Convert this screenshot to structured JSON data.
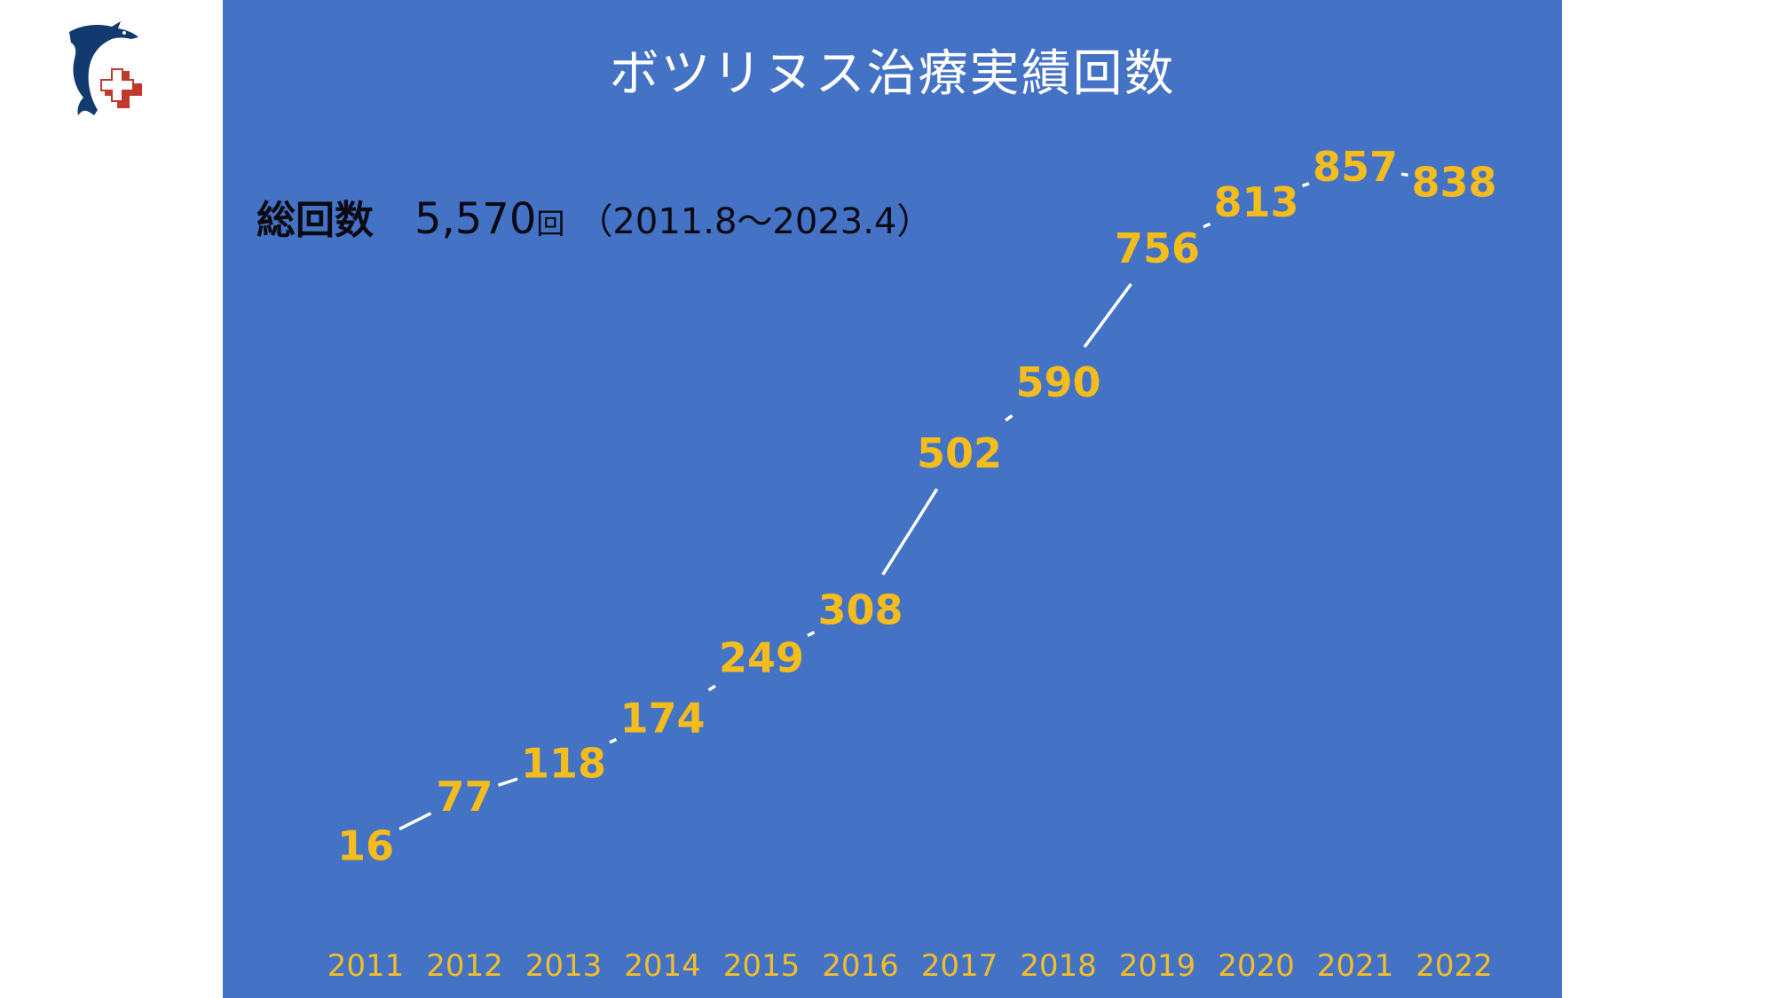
{
  "logo": {
    "name": "dolphin-cross-logo"
  },
  "colors": {
    "panel": "#4472c4",
    "title": "#ffffff",
    "label": "#f4bc1c",
    "line": "#ffffff",
    "summary": "#0a0a14"
  },
  "summary": {
    "label": "総回数",
    "total": "5,570",
    "unit": "回",
    "period": "（2011.8～2023.4）"
  },
  "chart_data": {
    "type": "line",
    "title": "ボツリヌス治療実績回数",
    "x": [
      "2011",
      "2012",
      "2013",
      "2014",
      "2015",
      "2016",
      "2017",
      "2018",
      "2019",
      "2020",
      "2021",
      "2022"
    ],
    "series": [
      {
        "values": [
          16,
          77,
          118,
          174,
          249,
          308,
          502,
          590,
          756,
          813,
          857,
          838
        ]
      }
    ],
    "data_labels": [
      "16",
      "77",
      "118",
      "174",
      "249",
      "308",
      "502",
      "590",
      "756",
      "813",
      "857",
      "838"
    ],
    "drop_lines": true,
    "grid": false,
    "legend": "none",
    "ylim": [
      0,
      900
    ]
  }
}
